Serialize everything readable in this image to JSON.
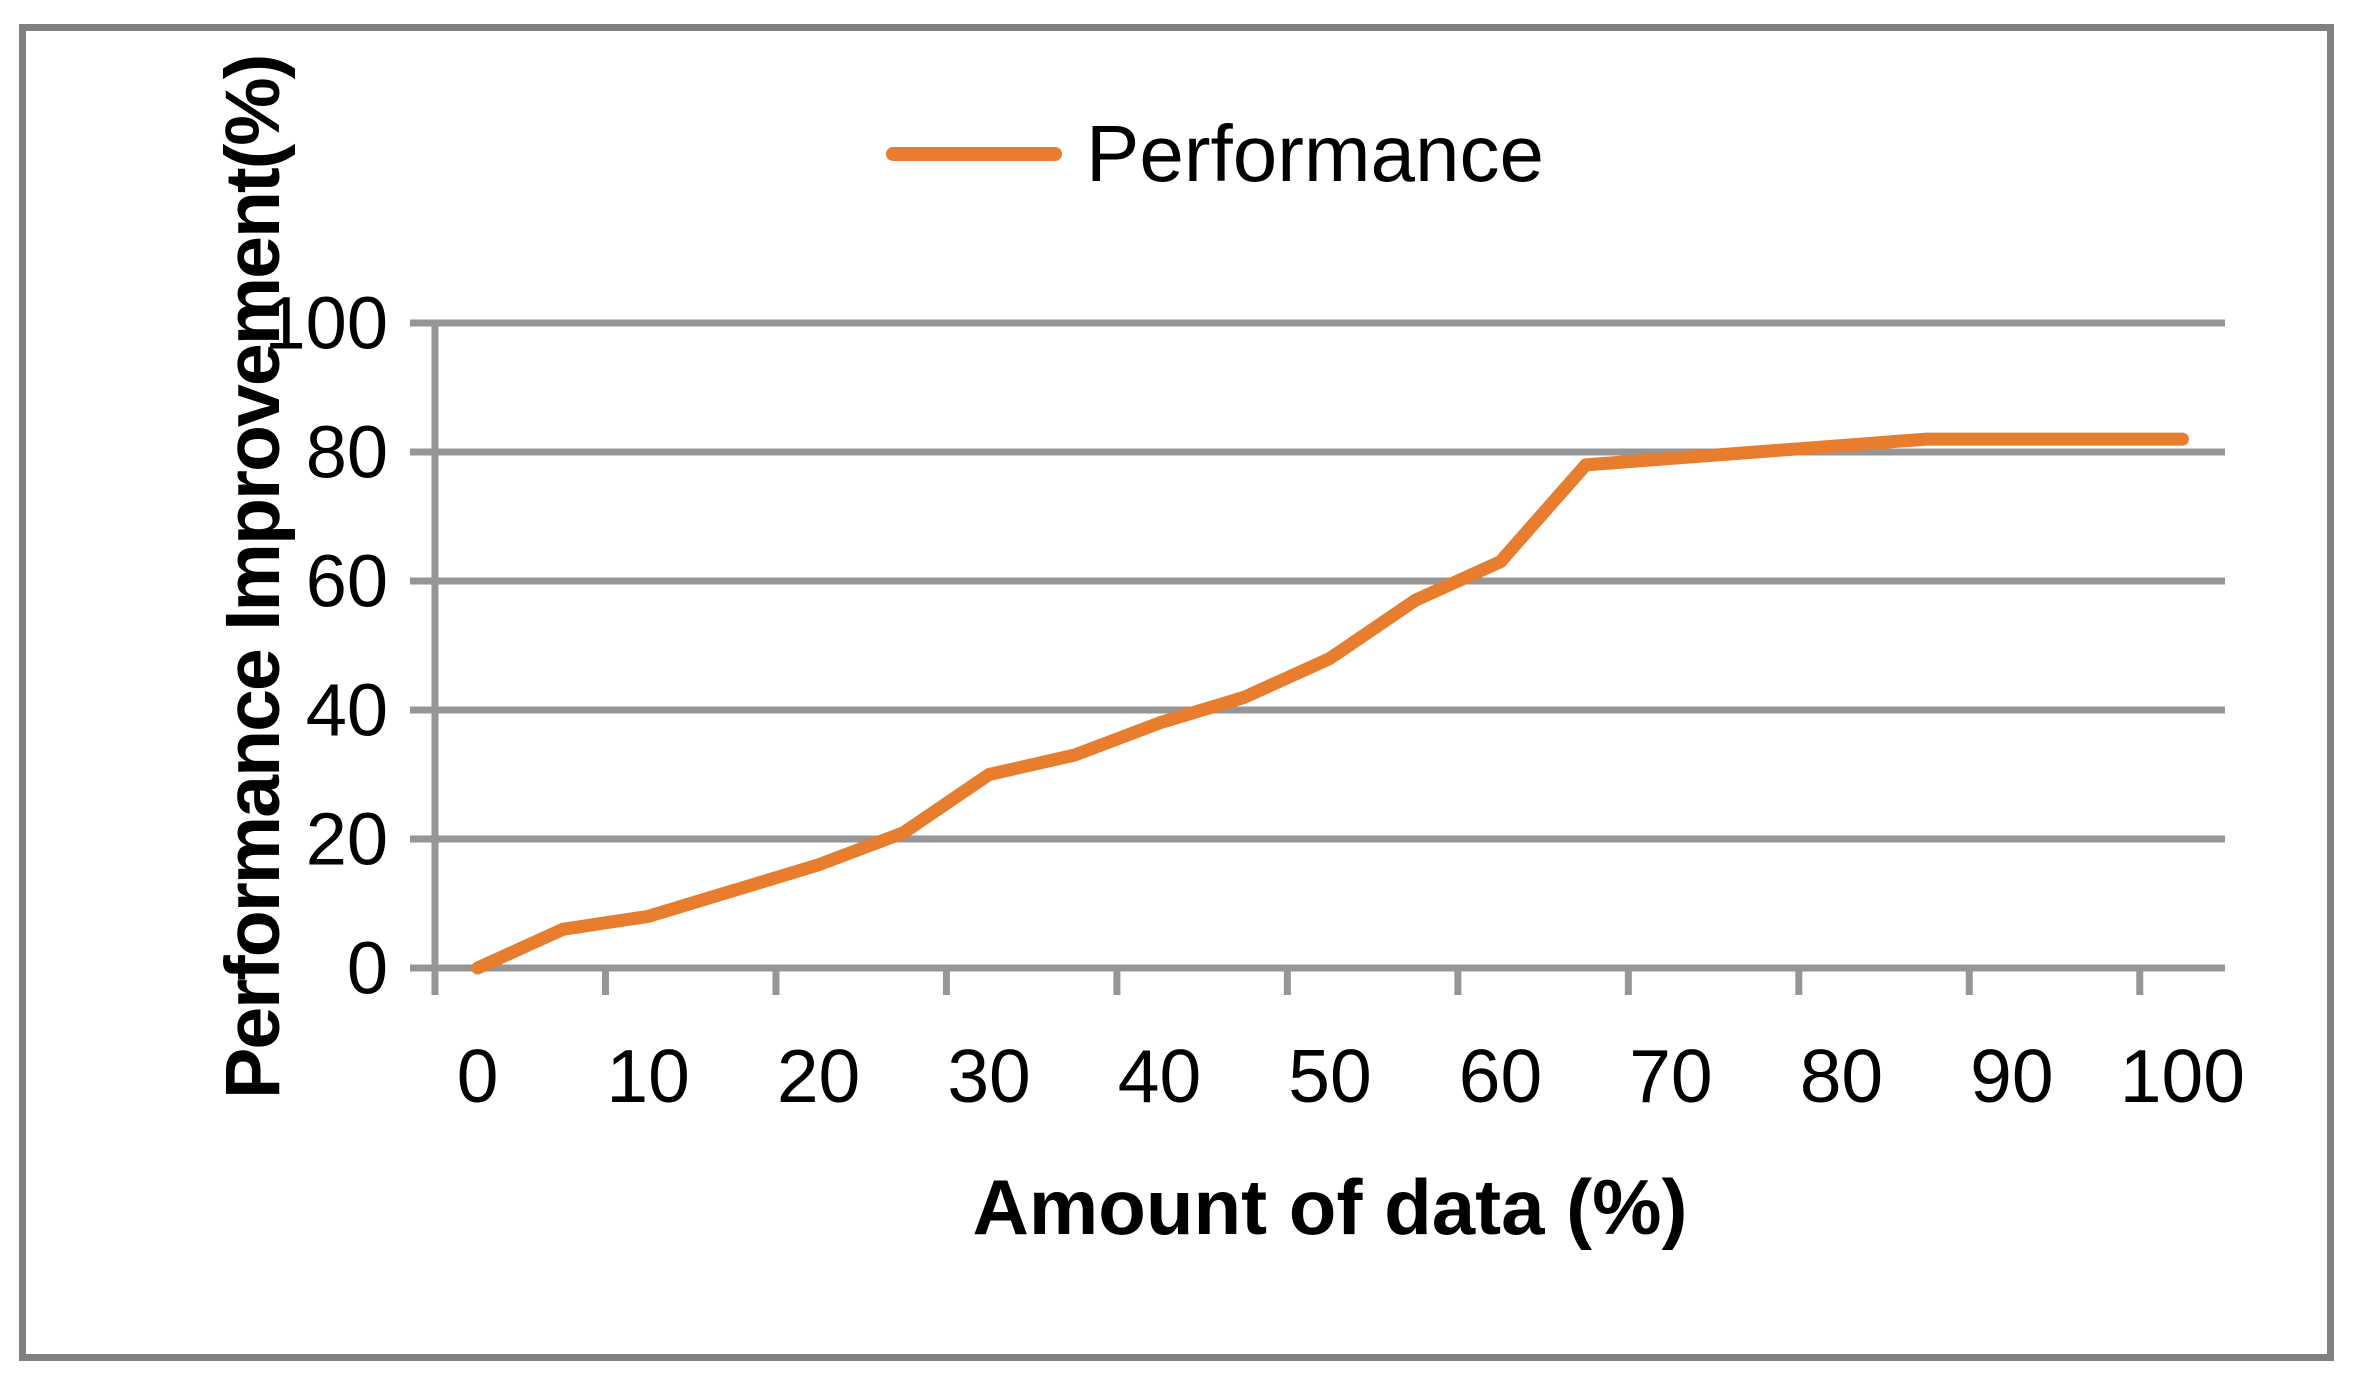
{
  "figure": {
    "background": "#ffffff",
    "border_color": "#7f7f7f"
  },
  "legend": {
    "label": "Performance",
    "swatch_color": "#e87d2d"
  },
  "chart_data": {
    "type": "line",
    "title": "",
    "xlabel": "Amount of data (%)",
    "ylabel": "Performance Improvement(%)",
    "x": [
      0,
      5,
      10,
      15,
      20,
      25,
      30,
      35,
      40,
      45,
      50,
      55,
      60,
      65,
      70,
      75,
      80,
      85,
      90,
      95,
      100
    ],
    "series": [
      {
        "name": "Performance",
        "color": "#e87d2d",
        "values": [
          0,
          6,
          8,
          12,
          16,
          21,
          30,
          33,
          38,
          42,
          48,
          57,
          63,
          78,
          79,
          80,
          81,
          82,
          82,
          82,
          82
        ]
      }
    ],
    "x_tick_labels": [
      "0",
      "10",
      "20",
      "30",
      "40",
      "50",
      "60",
      "70",
      "80",
      "90",
      "100"
    ],
    "y_tick_labels": [
      "0",
      "20",
      "40",
      "60",
      "80",
      "100"
    ],
    "xlim": [
      0,
      100
    ],
    "ylim": [
      0,
      100
    ],
    "grid": "horizontal",
    "gridline_color": "#969696",
    "axis_color": "#969696",
    "legend_position": "top-center"
  }
}
